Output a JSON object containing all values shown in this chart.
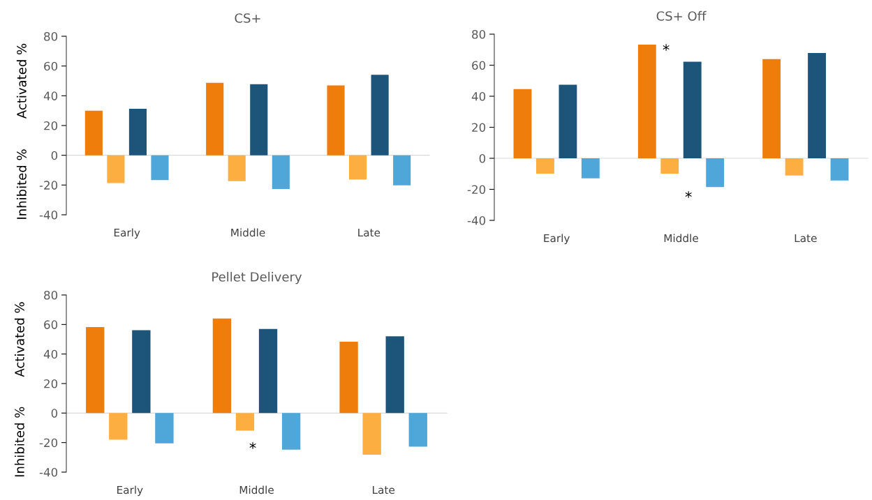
{
  "chart_data": [
    {
      "type": "bar",
      "title": "CS+",
      "ylabel": "Activated %",
      "categories": [
        "Early",
        "Middle",
        "Late"
      ],
      "ylim": [
        -40,
        80
      ],
      "yticks": [
        -40,
        -20,
        0,
        20,
        40,
        60,
        80
      ],
      "legend": false,
      "series": [
        {
          "color": "#ef7d0c",
          "values": [
            30,
            48.7,
            47
          ]
        },
        {
          "color": "#fdae41",
          "values": [
            -18.7,
            -17.4,
            -16.3
          ]
        },
        {
          "color": "#1c5579",
          "values": [
            31.3,
            47.8,
            54.1
          ]
        },
        {
          "color": "#4ea6d9",
          "values": [
            -16.7,
            -22.7,
            -20.2
          ]
        }
      ],
      "annotations": [
        "Inhibited %"
      ]
    },
    {
      "type": "bar",
      "title": "CS+ Off",
      "categories": [
        "Early",
        "Middle",
        "Late"
      ],
      "ylim": [
        -40,
        80
      ],
      "yticks": [
        -40,
        -20,
        0,
        20,
        40,
        60,
        80
      ],
      "legend": false,
      "series": [
        {
          "color": "#ef7d0c",
          "values": [
            44.6,
            73.3,
            63.9
          ]
        },
        {
          "color": "#fdae41",
          "values": [
            -9.9,
            -9.9,
            -11.1
          ]
        },
        {
          "color": "#1c5579",
          "values": [
            47.4,
            62.2,
            67.9
          ]
        },
        {
          "color": "#4ea6d9",
          "values": [
            -12.9,
            -18.5,
            -14.3
          ]
        }
      ],
      "annotations": [
        "*",
        "*"
      ]
    },
    {
      "type": "bar",
      "title": "Pellet Delivery",
      "ylabel": "Activated %",
      "categories": [
        "Early",
        "Middle",
        "Late"
      ],
      "ylim": [
        -40,
        80
      ],
      "yticks": [
        -40,
        -20,
        0,
        20,
        40,
        60,
        80
      ],
      "legend": false,
      "series": [
        {
          "color": "#ef7d0c",
          "values": [
            58.3,
            64.1,
            48.4
          ]
        },
        {
          "color": "#fdae41",
          "values": [
            -18,
            -11.9,
            -28.2
          ]
        },
        {
          "color": "#1c5579",
          "values": [
            56.2,
            57,
            52
          ]
        },
        {
          "color": "#4ea6d9",
          "values": [
            -20.5,
            -24.8,
            -22.8
          ]
        }
      ],
      "annotations": [
        "Inhibited %",
        "*"
      ]
    }
  ]
}
